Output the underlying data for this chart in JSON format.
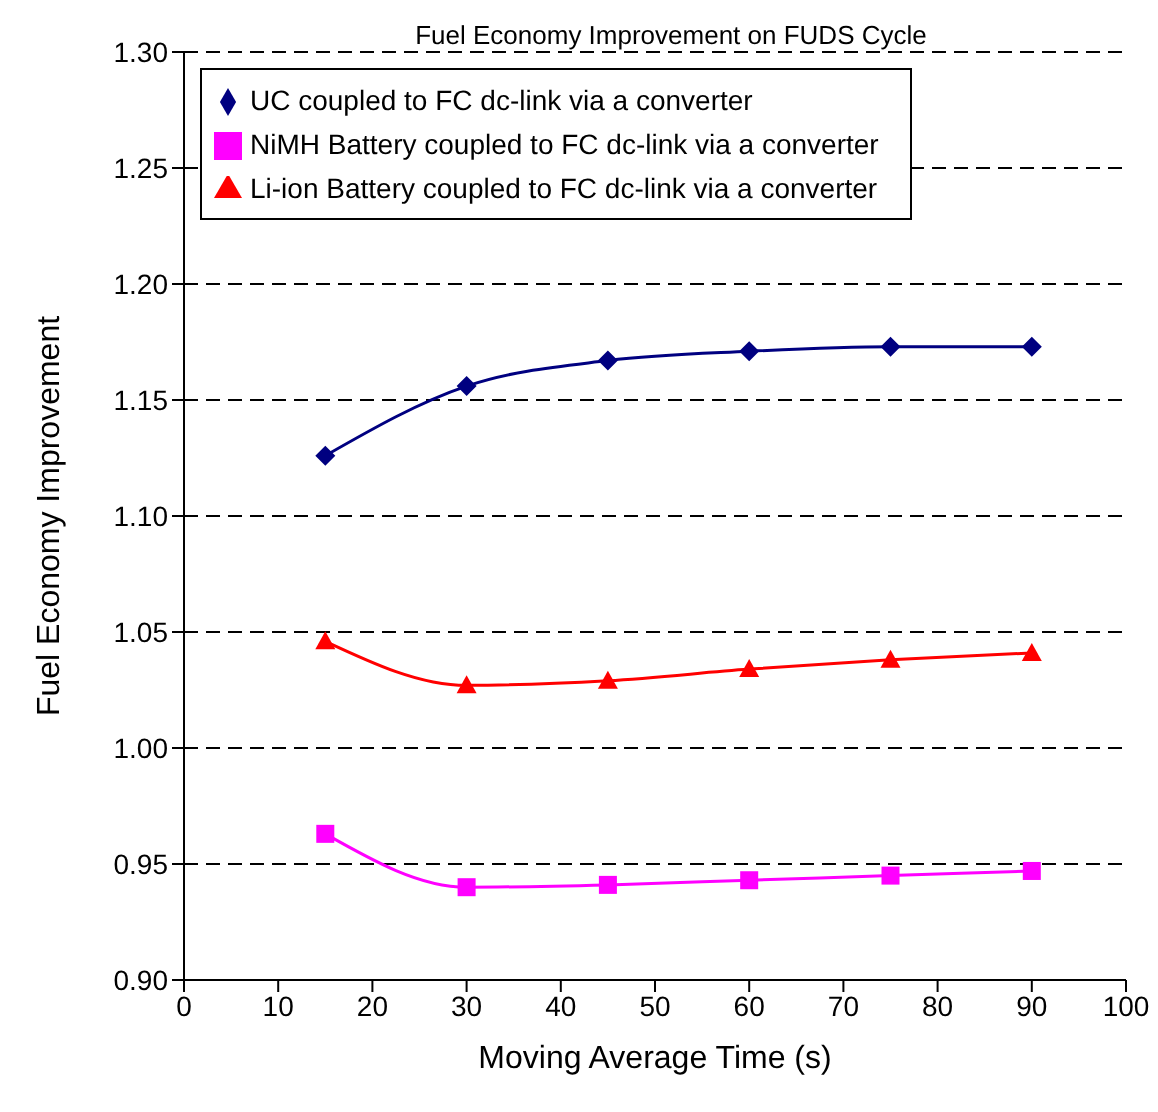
{
  "chart_data": {
    "type": "line",
    "title": "Fuel Economy Improvement on FUDS Cycle",
    "xlabel": "Moving Average Time (s)",
    "ylabel": "Fuel Economy Improvement",
    "x": [
      15,
      30,
      45,
      60,
      75,
      90
    ],
    "series": [
      {
        "name": "UC coupled to FC dc-link via a converter",
        "color": "#000080",
        "marker": "diamond",
        "values": [
          1.126,
          1.156,
          1.167,
          1.171,
          1.173,
          1.173
        ]
      },
      {
        "name": "NiMH Battery coupled to FC dc-link via a converter",
        "color": "#ff00ff",
        "marker": "square",
        "values": [
          0.963,
          0.94,
          0.941,
          0.943,
          0.945,
          0.947
        ]
      },
      {
        "name": "Li-ion Battery coupled to FC dc-link via a converter",
        "color": "#ff0000",
        "marker": "triangle",
        "values": [
          1.046,
          1.027,
          1.029,
          1.034,
          1.038,
          1.041
        ]
      }
    ],
    "xlim": [
      0,
      100
    ],
    "xticks": [
      0,
      10,
      20,
      30,
      40,
      50,
      60,
      70,
      80,
      90,
      100
    ],
    "ylim": [
      0.9,
      1.3
    ],
    "yticks": [
      {
        "value": 0.9,
        "label": "0.90"
      },
      {
        "value": 0.95,
        "label": "0.95"
      },
      {
        "value": 1.0,
        "label": "1.00"
      },
      {
        "value": 1.05,
        "label": "1.05"
      },
      {
        "value": 1.1,
        "label": "1.10"
      },
      {
        "value": 1.15,
        "label": "1.15"
      },
      {
        "value": 1.2,
        "label": "1.20"
      },
      {
        "value": 1.25,
        "label": "1.25"
      },
      {
        "value": 1.3,
        "label": "1.30"
      }
    ],
    "grid": "y",
    "legend": "top left",
    "line_style": "solid"
  }
}
